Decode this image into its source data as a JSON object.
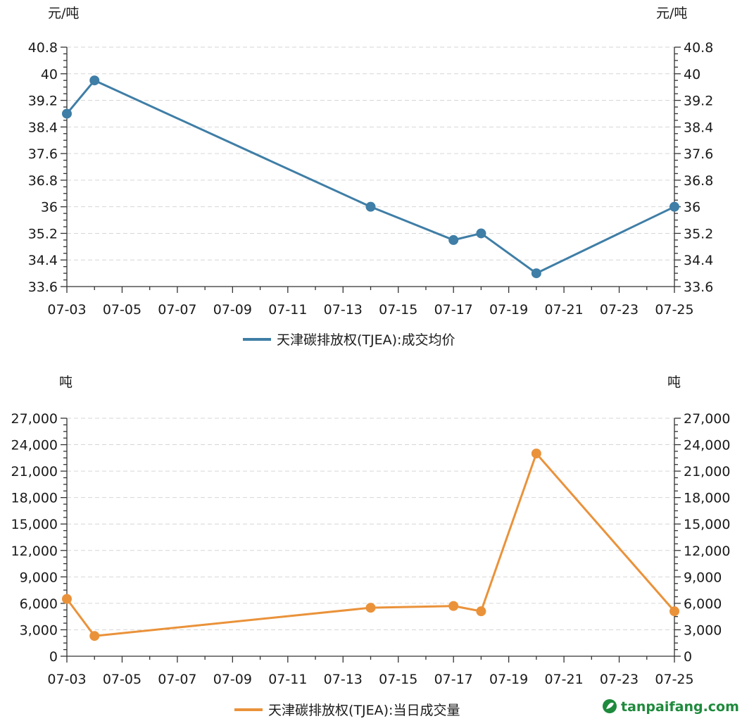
{
  "colors": {
    "price_series": "#3f7ea6",
    "volume_series": "#ea923a",
    "watermark": "#1e8a3c"
  },
  "watermark": {
    "text": "tanpaifang.com"
  },
  "chart_data": [
    {
      "type": "line",
      "unit_left": "元/吨",
      "unit_right": "元/吨",
      "xticks": [
        "07-03",
        "07-05",
        "07-07",
        "07-09",
        "07-11",
        "07-13",
        "07-15",
        "07-17",
        "07-19",
        "07-21",
        "07-23",
        "07-25"
      ],
      "yticks": [
        "33.6",
        "34.4",
        "35.2",
        "36",
        "36.8",
        "37.6",
        "38.4",
        "39.2",
        "40",
        "40.8"
      ],
      "ylim": [
        33.6,
        40.8
      ],
      "grid": true,
      "legend": "bottom-center",
      "series": [
        {
          "name": "天津碳排放权(TJEA):成交均价",
          "color": "#3f7ea6",
          "x": [
            "07-03",
            "07-04",
            "07-14",
            "07-17",
            "07-18",
            "07-20",
            "07-25"
          ],
          "values": [
            38.8,
            39.8,
            36.0,
            35.0,
            35.2,
            34.0,
            36.0
          ]
        }
      ]
    },
    {
      "type": "line",
      "unit_left": "吨",
      "unit_right": "吨",
      "xticks": [
        "07-03",
        "07-05",
        "07-07",
        "07-09",
        "07-11",
        "07-13",
        "07-15",
        "07-17",
        "07-19",
        "07-21",
        "07-23",
        "07-25"
      ],
      "yticks": [
        "0",
        "3,000",
        "6,000",
        "9,000",
        "12,000",
        "15,000",
        "18,000",
        "21,000",
        "24,000",
        "27,000"
      ],
      "ylim": [
        0,
        27000
      ],
      "grid": true,
      "legend": "bottom-center",
      "series": [
        {
          "name": "天津碳排放权(TJEA):当日成交量",
          "color": "#ea923a",
          "x": [
            "07-03",
            "07-04",
            "07-14",
            "07-17",
            "07-18",
            "07-20",
            "07-25"
          ],
          "values": [
            6500,
            2300,
            5500,
            5700,
            5100,
            23000,
            5100
          ]
        }
      ]
    }
  ]
}
